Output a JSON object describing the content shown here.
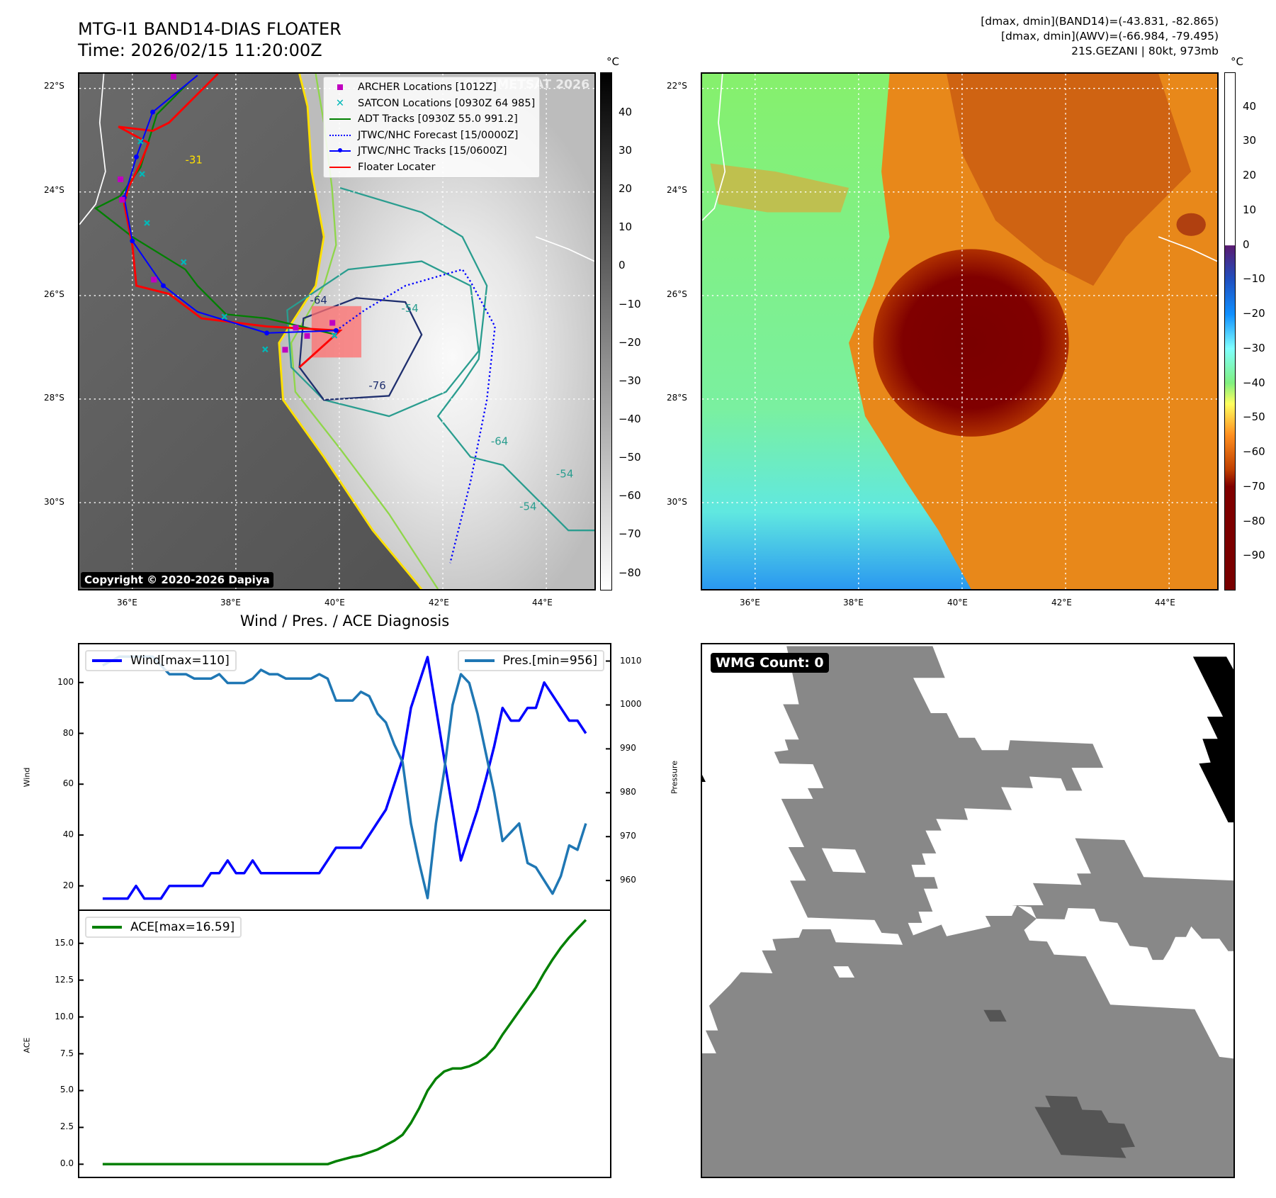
{
  "header": {
    "title_line1": "MTG-I1 BAND14-DIAS FLOATER",
    "title_line2": "Time: 2026/02/15 11:20:00Z",
    "info_line1": "[dmax, dmin](BAND14)=(-43.831, -82.865)",
    "info_line2": "[dmax, dmin](AWV)=(-66.984, -79.495)",
    "info_line3": "21S.GEZANI | 80kt, 973mb"
  },
  "maps": {
    "lat_labels": [
      "22°S",
      "24°S",
      "26°S",
      "28°S",
      "30°S"
    ],
    "lon_labels": [
      "36°E",
      "38°E",
      "40°E",
      "42°E",
      "44°E"
    ],
    "copyright": "Copyright © 2020-2026 Dapiya",
    "watermark": "© EUMETSAT 2026",
    "contour_labels": [
      "-64",
      "-54",
      "-76",
      "-31",
      "-64",
      "-54",
      "-54"
    ],
    "legend": [
      {
        "label": "ARCHER Locations [1012Z]",
        "color": "#c000c0",
        "marker": "square"
      },
      {
        "label": "SATCON Locations [0930Z 64 985]",
        "color": "#00b8b8",
        "marker": "x"
      },
      {
        "label": "ADT Tracks [0930Z 55.0 991.2]",
        "color": "#008000",
        "marker": "line"
      },
      {
        "label": "JTWC/NHC Forecast [15/0000Z]",
        "color": "#0000ff",
        "marker": "dotted"
      },
      {
        "label": "JTWC/NHC Tracks [15/0600Z]",
        "color": "#0000ff",
        "marker": "line-dot"
      },
      {
        "label": "Floater Locater",
        "color": "#ff0000",
        "marker": "line"
      }
    ],
    "colorbar_ir": {
      "unit": "°C",
      "range": [
        -84.5,
        50.5
      ],
      "ticks": [
        "40",
        "30",
        "20",
        "10",
        "0",
        "−10",
        "−20",
        "−30",
        "−40",
        "−50",
        "−60",
        "−70",
        "−80"
      ],
      "tick_values": [
        40,
        30,
        20,
        10,
        0,
        -10,
        -20,
        -30,
        -40,
        -50,
        -60,
        -70,
        -80
      ]
    },
    "colorbar_awv": {
      "unit": "°C",
      "range": [
        -100,
        50
      ],
      "ticks": [
        "40",
        "30",
        "20",
        "10",
        "0",
        "−10",
        "−20",
        "−30",
        "−40",
        "−50",
        "−60",
        "−70",
        "−80",
        "−90"
      ],
      "tick_values": [
        40,
        30,
        20,
        10,
        0,
        -10,
        -20,
        -30,
        -40,
        -50,
        -60,
        -70,
        -80,
        -90
      ]
    }
  },
  "wmg": {
    "label": "WMG Count: 0"
  },
  "chart_data": [
    {
      "type": "line",
      "title": "Wind / Pres. / ACE Diagnosis",
      "ylabel": "Wind",
      "y2label": "Pressure",
      "xlim": [
        -2.8,
        60.9
      ],
      "ylim": [
        10.7,
        115
      ],
      "y2lim": [
        953.4,
        1013.8
      ],
      "yticks": [
        20,
        40,
        60,
        80,
        100
      ],
      "y2ticks": [
        960,
        970,
        980,
        990,
        1000,
        1010
      ],
      "series": [
        {
          "name": "Wind[max=110]",
          "color": "#0000ff",
          "axis": "left",
          "values": [
            15,
            15,
            15,
            15,
            20,
            15,
            15,
            15,
            20,
            20,
            20,
            20,
            20,
            25,
            25,
            30,
            25,
            25,
            30,
            25,
            25,
            25,
            25,
            25,
            25,
            25,
            25,
            30,
            35,
            35,
            35,
            35,
            40,
            45,
            50,
            60,
            70,
            90,
            100,
            110,
            90,
            70,
            50,
            30,
            40,
            50,
            62,
            75,
            90,
            85,
            85,
            90,
            90,
            100,
            95,
            90,
            85,
            85,
            80
          ]
        },
        {
          "name": "Pres.[min=956]",
          "color": "#1f77b4",
          "axis": "right",
          "values": [
            1009,
            1010,
            1011,
            1011,
            1011,
            1011,
            1011,
            1009,
            1007,
            1007,
            1007,
            1006,
            1006,
            1006,
            1007,
            1005,
            1005,
            1005,
            1006,
            1008,
            1007,
            1007,
            1006,
            1006,
            1006,
            1006,
            1007,
            1006,
            1001,
            1001,
            1001,
            1003,
            1002,
            998,
            996,
            991,
            987,
            973,
            964,
            956,
            973,
            985,
            1000,
            1007,
            1005,
            998,
            989,
            980,
            969,
            971,
            973,
            964,
            963,
            960,
            957,
            961,
            968,
            967,
            973
          ]
        }
      ]
    },
    {
      "type": "line",
      "ylabel": "ACE",
      "xlim": [
        -2.8,
        60.9
      ],
      "ylim": [
        -0.85,
        17.2
      ],
      "yticks": [
        "0.0",
        "2.5",
        "5.0",
        "7.5",
        "10.0",
        "12.5",
        "15.0"
      ],
      "series": [
        {
          "name": "ACE[max=16.59]",
          "color": "#008000",
          "values": [
            0,
            0,
            0,
            0,
            0,
            0,
            0,
            0,
            0,
            0,
            0,
            0,
            0,
            0,
            0,
            0,
            0,
            0,
            0,
            0,
            0,
            0,
            0,
            0,
            0,
            0,
            0,
            0,
            0.2,
            0.35,
            0.5,
            0.6,
            0.8,
            1.0,
            1.3,
            1.6,
            2.0,
            2.8,
            3.8,
            5.0,
            5.8,
            6.3,
            6.5,
            6.5,
            6.65,
            6.9,
            7.3,
            7.9,
            8.8,
            9.6,
            10.4,
            11.2,
            12.0,
            13.0,
            13.9,
            14.7,
            15.4,
            16.0,
            16.59
          ]
        }
      ]
    }
  ]
}
